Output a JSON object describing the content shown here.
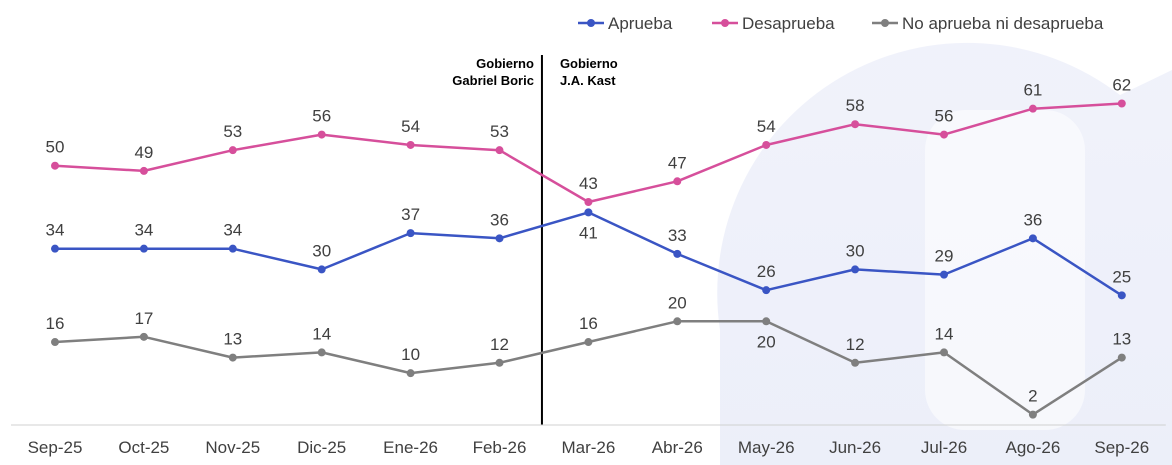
{
  "chart_data": {
    "type": "line",
    "categories": [
      "Sep-25",
      "Oct-25",
      "Nov-25",
      "Dic-25",
      "Ene-26",
      "Feb-26",
      "Mar-26",
      "Abr-26",
      "May-26",
      "Jun-26",
      "Jul-26",
      "Ago-26",
      "Sep-26"
    ],
    "series": [
      {
        "name": "Aprueba",
        "color": "#3a55c4",
        "values": [
          34,
          34,
          34,
          30,
          37,
          36,
          41,
          33,
          26,
          30,
          29,
          36,
          25
        ]
      },
      {
        "name": "Desaprueba",
        "color": "#d64f9b",
        "values": [
          50,
          49,
          53,
          56,
          54,
          53,
          43,
          47,
          54,
          58,
          56,
          61,
          62
        ]
      },
      {
        "name": "No aprueba ni desaprueba",
        "color": "#7f7f7f",
        "values": [
          16,
          17,
          13,
          14,
          10,
          12,
          16,
          20,
          20,
          12,
          14,
          2,
          13
        ]
      }
    ],
    "ylim": [
      0,
      70
    ],
    "grid": false,
    "legend_position": "top-right",
    "annotations": [
      {
        "lines": [
          "Gobierno",
          "Gabriel Boric"
        ],
        "side": "left"
      },
      {
        "lines": [
          "Gobierno",
          "J.A. Kast"
        ],
        "side": "right"
      }
    ],
    "divider_between": [
      "Feb-26",
      "Mar-26"
    ]
  }
}
